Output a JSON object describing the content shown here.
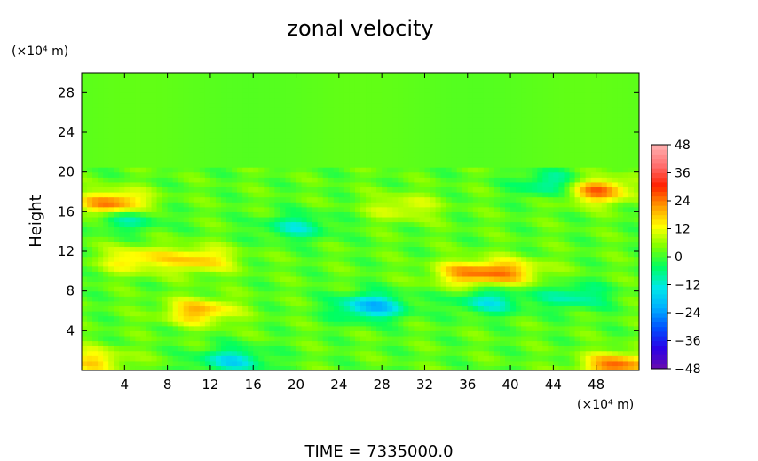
{
  "chart_data": {
    "type": "heatmap",
    "title": "zonal velocity",
    "ylabel": "Height",
    "xunit": "(×10⁴ m)",
    "yunit": "(×10⁴ m)",
    "footer": "TIME = 7335000.0",
    "xlim": [
      0,
      52
    ],
    "ylim": [
      0,
      30
    ],
    "xticks": [
      4,
      8,
      12,
      16,
      20,
      24,
      28,
      32,
      36,
      40,
      44,
      48
    ],
    "yticks": [
      4,
      8,
      12,
      16,
      20,
      24,
      28
    ],
    "colorbar": {
      "ticks": [
        48,
        36,
        24,
        12,
        0,
        -12,
        -24,
        -36,
        -48
      ],
      "min": -48,
      "max": 48,
      "colors": [
        "#6a0dad",
        "#2a00e6",
        "#0050ff",
        "#00b0ff",
        "#00e8e8",
        "#00ff60",
        "#7cff00",
        "#ffff00",
        "#ff9a00",
        "#ff2000",
        "#ff7070",
        "#ffb0b0"
      ]
    },
    "field": {
      "description_free": true,
      "background_value": 2,
      "features": [
        {
          "x": 3,
          "y": 16.8,
          "value": 28
        },
        {
          "x": 48,
          "y": 18.2,
          "value": 26
        },
        {
          "x": 11,
          "y": 11.2,
          "value": 18
        },
        {
          "x": 5,
          "y": 11.2,
          "value": 16
        },
        {
          "x": 36,
          "y": 9.8,
          "value": 20
        },
        {
          "x": 40,
          "y": 10.0,
          "value": 18
        },
        {
          "x": 11,
          "y": 6.0,
          "value": 20
        },
        {
          "x": 27,
          "y": 6.5,
          "value": -20
        },
        {
          "x": 14,
          "y": 1.0,
          "value": -14
        },
        {
          "x": 50,
          "y": 0.5,
          "value": 26
        },
        {
          "x": 1,
          "y": 1.0,
          "value": 16
        },
        {
          "x": 4,
          "y": 15.5,
          "value": -12
        },
        {
          "x": 44,
          "y": 18.8,
          "value": -12
        },
        {
          "x": 46,
          "y": 7.5,
          "value": -10
        },
        {
          "x": 20,
          "y": 14.5,
          "value": -10
        },
        {
          "x": 30,
          "y": 16.5,
          "value": 12
        },
        {
          "x": 38,
          "y": 7.0,
          "value": -12
        }
      ]
    }
  }
}
